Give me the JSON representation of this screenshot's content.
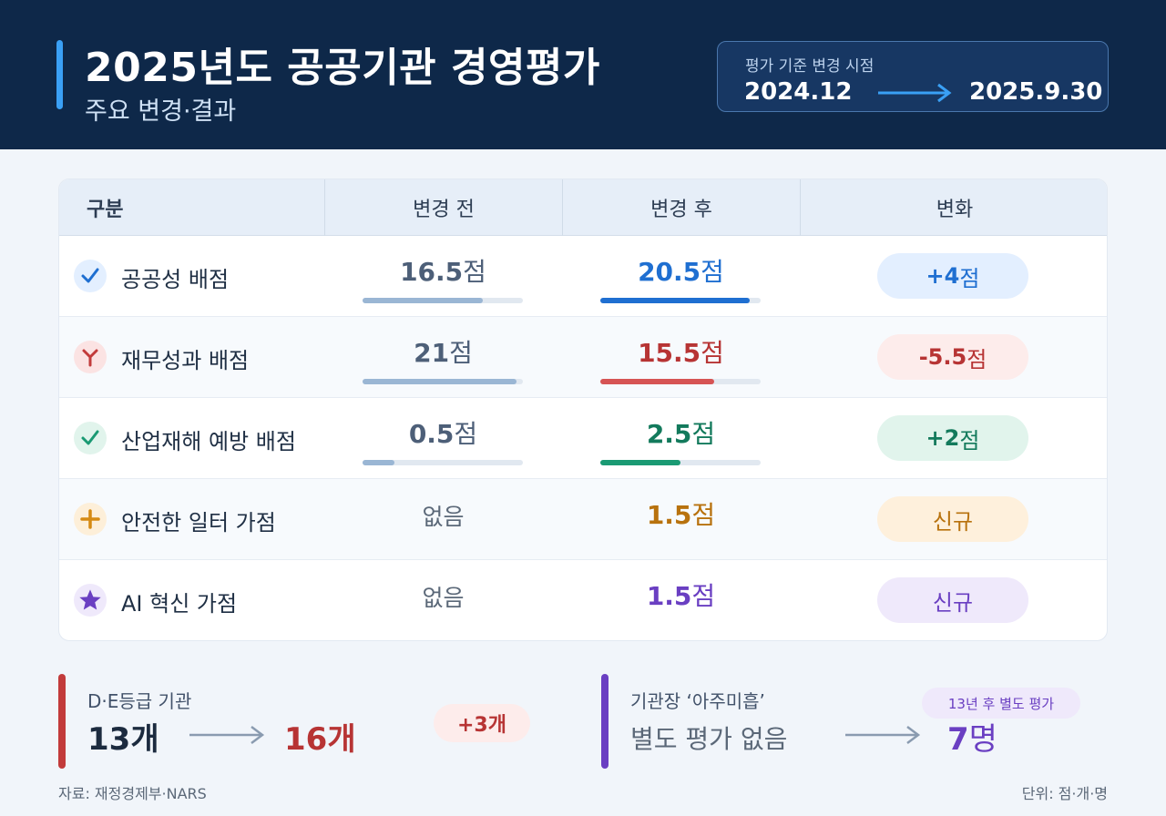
{
  "header": {
    "title": "2025년도 공공기관 경영평가",
    "subtitle": "주요 변경·결과",
    "period_label": "평가 기준 변경 시점",
    "period_from": "2024.12",
    "period_to": "2025.9.30"
  },
  "colors": {
    "navy": "#0e2849",
    "blue": "#1f6fd1",
    "red": "#b73434",
    "green": "#137a5c",
    "orange": "#b8720e",
    "purple": "#6a3fc2"
  },
  "table": {
    "headers": [
      "구분",
      "변경 전",
      "변경 후",
      "변화"
    ],
    "rows": [
      {
        "icon": "check-icon",
        "label": "공공성 배점",
        "before_num": "16.5",
        "before_unit": "점",
        "after_num": "20.5",
        "after_unit": "점",
        "before_level": 0.75,
        "after_level": 0.93,
        "change_num": "+4",
        "change_unit": "점"
      },
      {
        "icon": "y-branch-icon",
        "label": "재무성과 배점",
        "before_num": "21",
        "before_unit": "점",
        "after_num": "15.5",
        "after_unit": "점",
        "before_level": 0.96,
        "after_level": 0.71,
        "change_num": "-5.5",
        "change_unit": "점"
      },
      {
        "icon": "check-icon",
        "label": "산업재해 예방 배점",
        "before_num": "0.5",
        "before_unit": "점",
        "after_num": "2.5",
        "after_unit": "점",
        "before_level": 0.2,
        "after_level": 0.5,
        "change_num": "+2",
        "change_unit": "점"
      },
      {
        "icon": "plus-icon",
        "label": "안전한 일터 가점",
        "before_text": "없음",
        "after_num": "1.5",
        "after_unit": "점",
        "change_text": "신규"
      },
      {
        "icon": "star-icon",
        "label": "AI 혁신 가점",
        "before_text": "없음",
        "after_num": "1.5",
        "after_unit": "점",
        "change_text": "신규"
      }
    ]
  },
  "stats": {
    "grade": {
      "title": "D·E등급 기관",
      "before": "13개",
      "after": "16개",
      "change": "+3개"
    },
    "head": {
      "title": "기관장 ‘아주미흡’",
      "before": "별도 평가 없음",
      "after_num": "7",
      "after_unit": "명",
      "note": "13년 후 별도 평가"
    }
  },
  "footer": {
    "source": "자료: 재정경제부·NARS",
    "unit": "단위: 점·개·명"
  }
}
